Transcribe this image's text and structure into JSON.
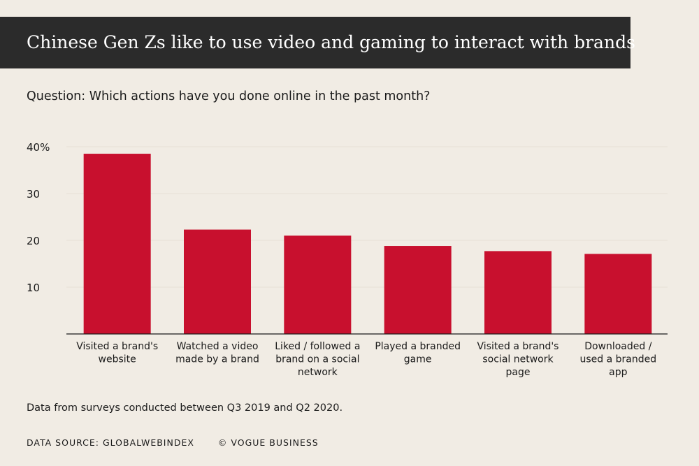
{
  "header": {
    "title": "Chinese Gen Zs like to use video and gaming to interact with brands",
    "subtitle": "Question: Which actions have you done online in the past month?"
  },
  "chart_data": {
    "type": "bar",
    "categories": [
      [
        "Visited a brand's",
        "website"
      ],
      [
        "Watched a video",
        "made by a brand"
      ],
      [
        "Liked / followed a",
        "brand on a social",
        "network"
      ],
      [
        "Played a branded",
        "game"
      ],
      [
        "Visited a brand's",
        "social network",
        "page"
      ],
      [
        "Downloaded /",
        "used a branded",
        "app"
      ]
    ],
    "values": [
      38.5,
      22.3,
      21.0,
      18.8,
      17.7,
      17.1
    ],
    "ylim": [
      0,
      40
    ],
    "yticks": [
      10,
      20,
      30,
      40
    ],
    "ytick_labels": [
      "10",
      "20",
      "30",
      "40%"
    ],
    "grid": true,
    "bar_color": "#c8102e",
    "grid_color": "#e6e0d6"
  },
  "footer": {
    "note": "Data from surveys conducted between Q3 2019 and Q2 2020.",
    "source": "DATA SOURCE: GLOBALWEBINDEX",
    "credit": "© VOGUE BUSINESS"
  }
}
